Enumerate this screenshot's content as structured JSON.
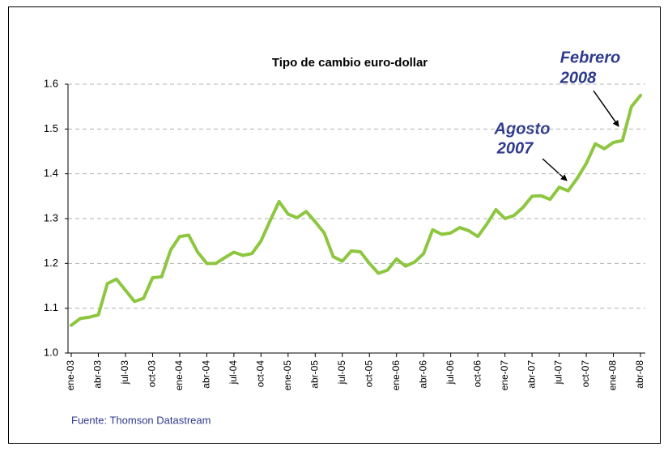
{
  "chart_data": {
    "type": "line",
    "title": "Tipo de cambio euro-dollar",
    "source": "Fuente: Thomson Datastream",
    "annotations": [
      {
        "lines": [
          "Febrero",
          "2008"
        ]
      },
      {
        "lines": [
          "Agosto",
          "2007"
        ]
      }
    ],
    "categories": [
      "ene-03",
      null,
      null,
      "abr-03",
      null,
      null,
      "jul-03",
      null,
      null,
      "oct-03",
      null,
      null,
      "ene-04",
      null,
      null,
      "abr-04",
      null,
      null,
      "jul-04",
      null,
      null,
      "oct-04",
      null,
      null,
      "ene-05",
      null,
      null,
      "abr-05",
      null,
      null,
      "jul-05",
      null,
      null,
      "oct-05",
      null,
      null,
      "ene-06",
      null,
      null,
      "abr-06",
      null,
      null,
      "jul-06",
      null,
      null,
      "oct-06",
      null,
      null,
      "ene-07",
      null,
      null,
      "abr-07",
      null,
      null,
      "jul-07",
      null,
      null,
      "oct-07",
      null,
      null,
      "ene-08",
      null,
      null,
      "abr-08"
    ],
    "values": [
      1.062,
      1.077,
      1.08,
      1.085,
      1.155,
      1.165,
      1.14,
      1.115,
      1.122,
      1.168,
      1.17,
      1.23,
      1.26,
      1.263,
      1.225,
      1.2,
      1.2,
      1.213,
      1.225,
      1.218,
      1.222,
      1.25,
      1.295,
      1.338,
      1.31,
      1.302,
      1.316,
      1.293,
      1.268,
      1.215,
      1.205,
      1.228,
      1.226,
      1.2,
      1.178,
      1.185,
      1.21,
      1.194,
      1.203,
      1.222,
      1.275,
      1.265,
      1.268,
      1.28,
      1.273,
      1.26,
      1.288,
      1.32,
      1.3,
      1.307,
      1.325,
      1.35,
      1.351,
      1.343,
      1.37,
      1.362,
      1.39,
      1.423,
      1.467,
      1.456,
      1.47,
      1.474,
      1.55,
      1.575
    ],
    "color": "#8dc63f",
    "ylim": [
      1,
      1.6
    ],
    "yticks": [
      {
        "value": 1,
        "label": "1.0"
      },
      1.1,
      1.2,
      1.3,
      1.4,
      1.5,
      1.6
    ],
    "grid": true
  }
}
